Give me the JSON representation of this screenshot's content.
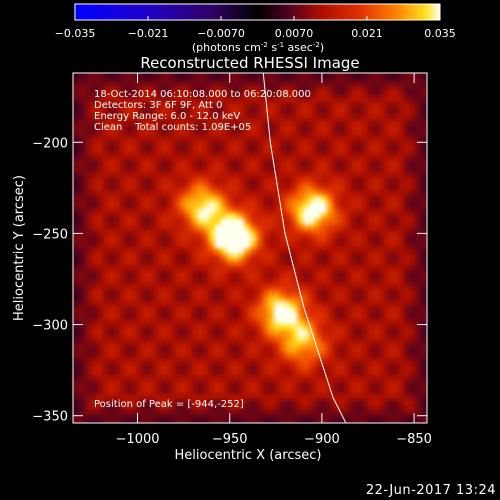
{
  "colorbar": {
    "ticks": [
      "-0.035",
      "-0.021",
      "-0.0070",
      "0.0070",
      "0.021",
      "0.035"
    ],
    "unit_parts": [
      "(photons cm",
      "-2",
      " s",
      "-1",
      " asec",
      "-2",
      ")"
    ]
  },
  "chart_data": {
    "type": "heatmap",
    "title": "Reconstructed RHESSI Image",
    "xlabel": "Heliocentric X (arcsec)",
    "ylabel": "Heliocentric Y (arcsec)",
    "xlim": [
      -1035,
      -843
    ],
    "ylim": [
      -354,
      -162
    ],
    "x_ticks": [
      -1000,
      -950,
      -900,
      -850
    ],
    "x_tick_labels": [
      "−1000",
      "−950",
      "−900",
      "−850"
    ],
    "y_ticks": [
      -200,
      -250,
      -300,
      -350
    ],
    "y_tick_labels": [
      "−200",
      "−250",
      "−300",
      "−350"
    ],
    "colorbar_range": [
      -0.035,
      0.035
    ],
    "sources": [
      {
        "x": -948,
        "y": -252,
        "peak": 0.035
      },
      {
        "x": -905,
        "y": -237,
        "peak": 0.027
      },
      {
        "x": -922,
        "y": -293,
        "peak": 0.025
      },
      {
        "x": -965,
        "y": -235,
        "peak": 0.022
      },
      {
        "x": -910,
        "y": -310,
        "peak": 0.018
      }
    ],
    "limb": [
      [
        -932,
        -160
      ],
      [
        -928,
        -200
      ],
      [
        -920,
        -250
      ],
      [
        -910,
        -290
      ],
      [
        -894,
        -340
      ],
      [
        -887,
        -354
      ]
    ],
    "annotations": [
      "18-Oct-2014 06:10:08.000 to 06:20:08.000",
      "Detectors: 3F 6F 9F, Att 0",
      "Energy Range: 6.0 - 12.0 keV",
      "Clean    Total counts: 1.09E+05"
    ],
    "peak_position": "Position of Peak = [-944,-252]"
  },
  "footer_date": "22-Jun-2017 13:24"
}
